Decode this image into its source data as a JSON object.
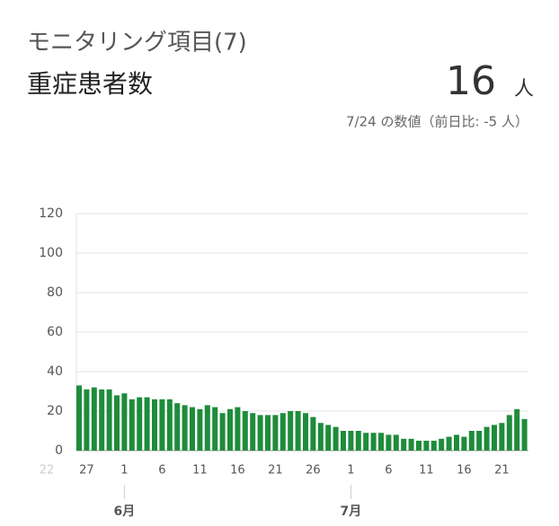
{
  "chart_data": {
    "type": "bar",
    "title": "モニタリング項目(7)",
    "subtitle": "重症患者数",
    "headline_value": "16",
    "headline_unit": "人",
    "note": "7/24 の数値（前日比: -5 人）",
    "color": "#1e8c3a",
    "grid": true,
    "ylim": [
      0,
      120
    ],
    "yticks": [
      0,
      20,
      40,
      60,
      80,
      100,
      120
    ],
    "clipped_x_label": "22",
    "categories": [
      null,
      "27",
      null,
      null,
      null,
      null,
      "1",
      null,
      null,
      null,
      null,
      "6",
      null,
      null,
      null,
      null,
      "11",
      null,
      null,
      null,
      null,
      "16",
      null,
      null,
      null,
      null,
      "21",
      null,
      null,
      null,
      null,
      "26",
      null,
      null,
      null,
      null,
      "1",
      null,
      null,
      null,
      null,
      "6",
      null,
      null,
      null,
      null,
      "11",
      null,
      null,
      null,
      null,
      "16",
      null,
      null,
      null,
      null,
      "21",
      null,
      null,
      null
    ],
    "values": [
      33,
      31,
      32,
      31,
      31,
      28,
      29,
      26,
      27,
      27,
      26,
      26,
      26,
      24,
      23,
      22,
      21,
      23,
      22,
      19,
      21,
      22,
      20,
      19,
      18,
      18,
      18,
      19,
      20,
      20,
      19,
      17,
      14,
      13,
      12,
      10,
      10,
      10,
      9,
      9,
      9,
      8,
      8,
      6,
      6,
      5,
      5,
      5,
      6,
      7,
      8,
      7,
      10,
      10,
      12,
      13,
      14,
      18,
      21,
      16
    ],
    "months": [
      {
        "index": 6,
        "label": "6月"
      },
      {
        "index": 36,
        "label": "7月"
      }
    ]
  }
}
